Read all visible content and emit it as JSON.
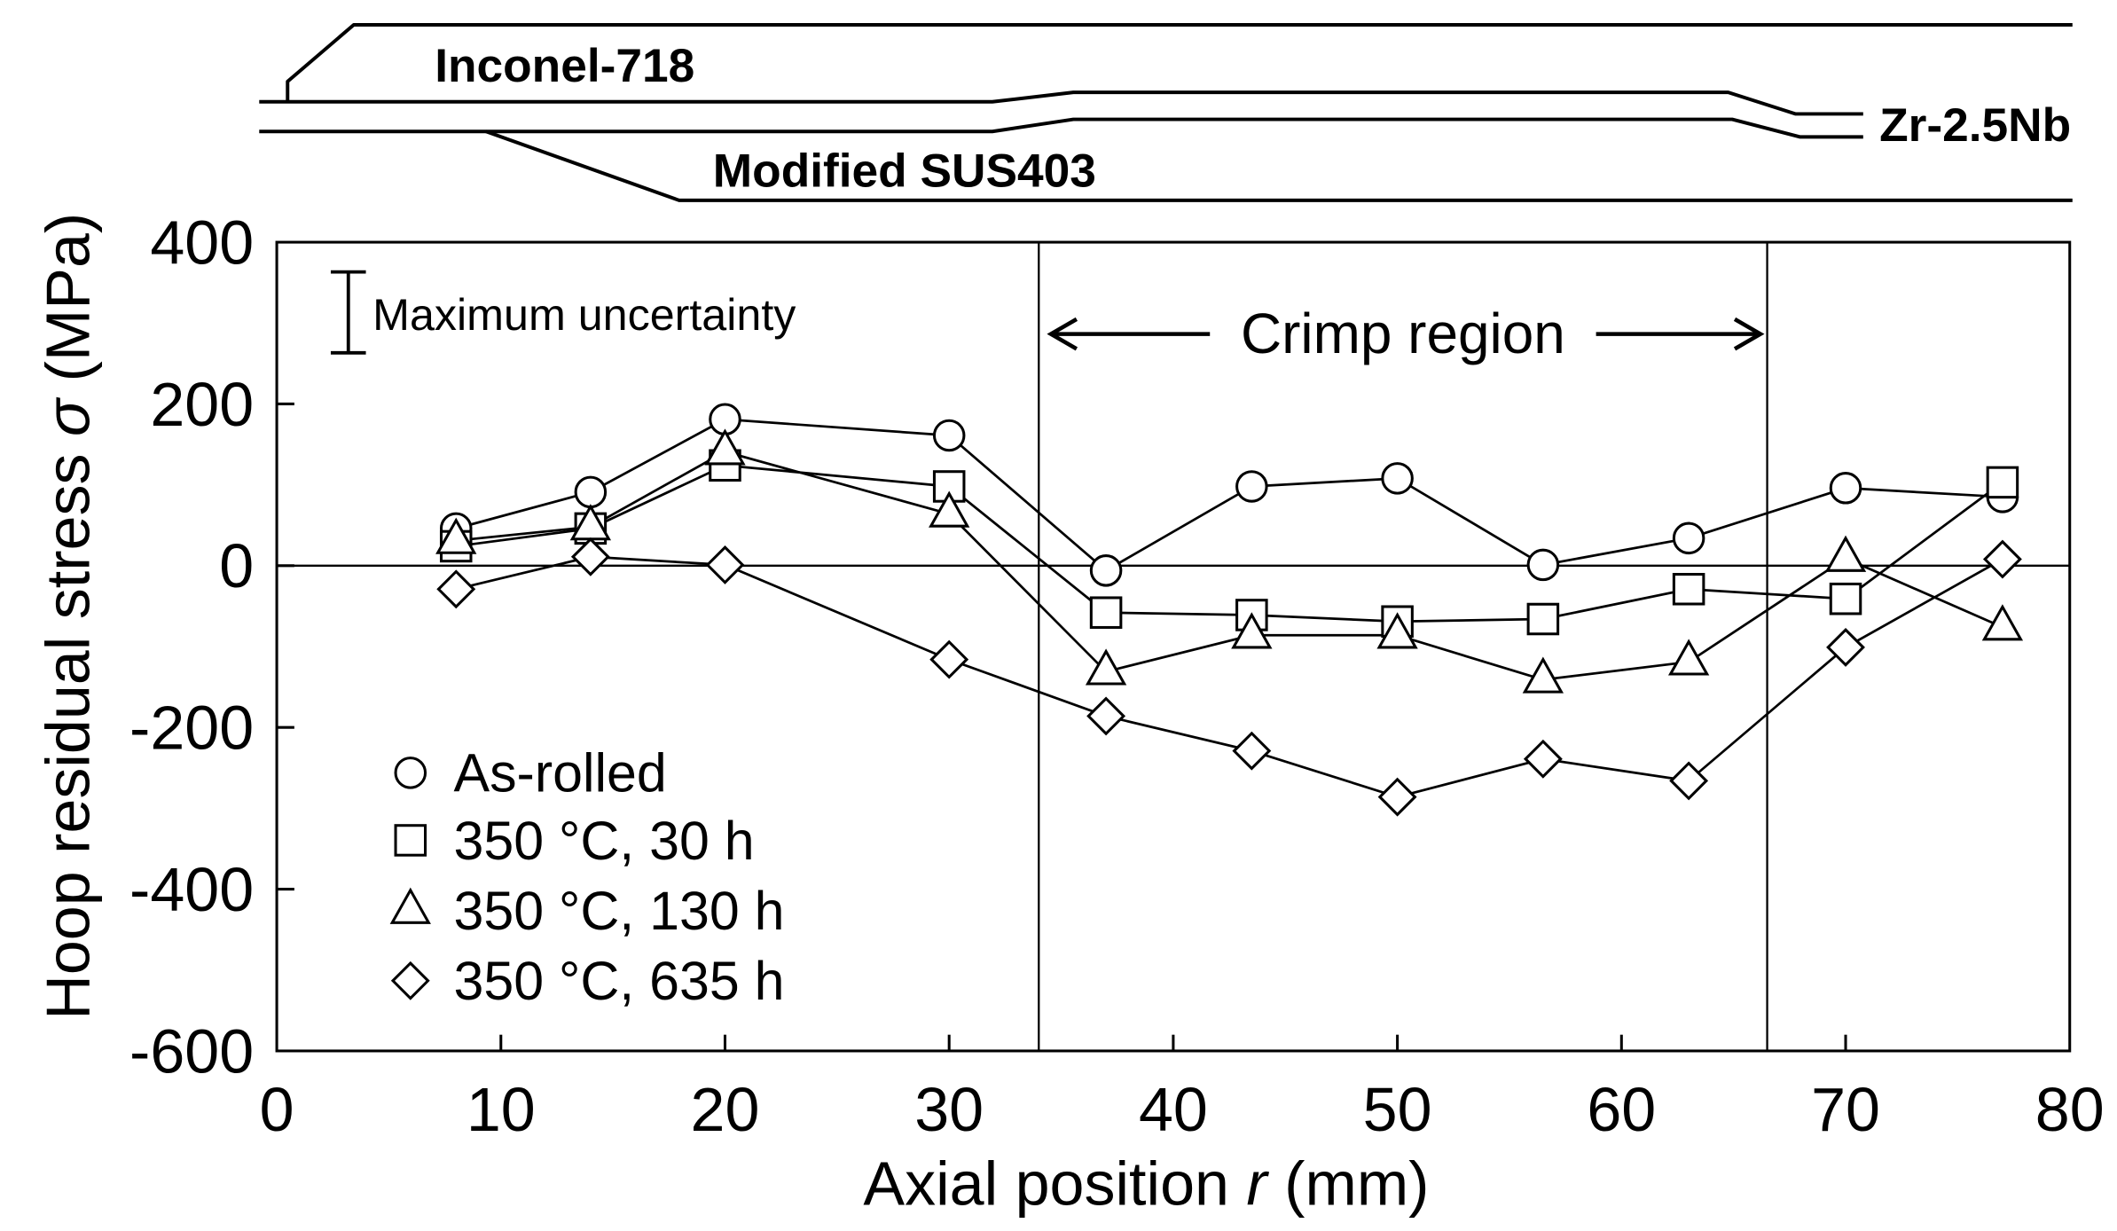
{
  "schematic": {
    "inconel_label": "Inconel-718",
    "zr_label": "Zr-2.5Nb",
    "sus_label": "Modified SUS403"
  },
  "chart_data": {
    "type": "line",
    "xlabel": {
      "pre": "Axial position ",
      "var": "r",
      "post": " (mm)"
    },
    "ylabel": {
      "pre": "Hoop residual stress ",
      "var": "σ",
      "post": " (MPa)"
    },
    "xlim": [
      0,
      80
    ],
    "ylim": [
      -600,
      400
    ],
    "xticks": [
      0,
      10,
      20,
      30,
      40,
      50,
      60,
      70,
      80
    ],
    "xtick_labels": [
      "0",
      "10",
      "20",
      "30",
      "40",
      "50",
      "60",
      "70",
      "80"
    ],
    "yticks": [
      400,
      200,
      0,
      -200,
      -400,
      -600
    ],
    "ytick_labels": [
      "400",
      "200",
      "0",
      "-200",
      "-400",
      "-600"
    ],
    "grid": false,
    "zero_line": true,
    "x": [
      8,
      14,
      20,
      30,
      37,
      43.5,
      50,
      56.5,
      63,
      70,
      77
    ],
    "series": [
      {
        "name": "As-rolled",
        "marker": "circle",
        "values": [
          46,
          91,
          181,
          161,
          -6,
          98,
          108,
          1,
          34,
          96,
          85
        ]
      },
      {
        "name": "350 °C, 30 h",
        "marker": "square",
        "values": [
          24,
          46,
          124,
          98,
          -58,
          -61,
          -69,
          -66,
          -29,
          -41,
          103
        ]
      },
      {
        "name": "350 °C, 130 h",
        "marker": "triangle",
        "values": [
          31,
          48,
          141,
          64,
          -131,
          -86,
          -86,
          -141,
          -119,
          9,
          -76
        ]
      },
      {
        "name": "350 °C, 635 h",
        "marker": "diamond",
        "values": [
          -29,
          11,
          1,
          -116,
          -186,
          -229,
          -286,
          -239,
          -266,
          -101,
          8
        ]
      }
    ],
    "legend_position": "bottom-left",
    "annotations": {
      "crimp_region": {
        "label": "Crimp region",
        "x_start": 34,
        "x_end": 66.5
      },
      "uncertainty": {
        "label": "Maximum uncertainty",
        "span": 100
      }
    }
  },
  "colors": {
    "ink": "#000000",
    "background": "#ffffff",
    "marker_fill": "#ffffff"
  }
}
